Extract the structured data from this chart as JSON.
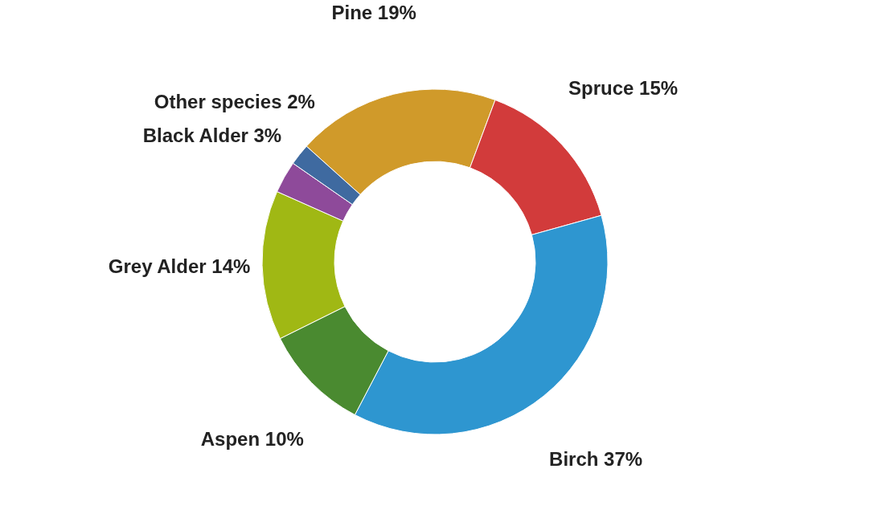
{
  "chart_data": {
    "type": "donut",
    "categories": [
      "Pine",
      "Spruce",
      "Birch",
      "Aspen",
      "Grey Alder",
      "Black Alder",
      "Other species"
    ],
    "values": [
      19,
      15,
      37,
      10,
      14,
      3,
      2
    ],
    "value_labels": [
      "19%",
      "15%",
      "37%",
      "10%",
      "14%",
      "3%",
      "2%"
    ],
    "colors": [
      "#d09a2a",
      "#d23b3b",
      "#2e96d0",
      "#4a8a30",
      "#a0b814",
      "#8e4a9a",
      "#3f6aa0"
    ],
    "legend": false
  }
}
